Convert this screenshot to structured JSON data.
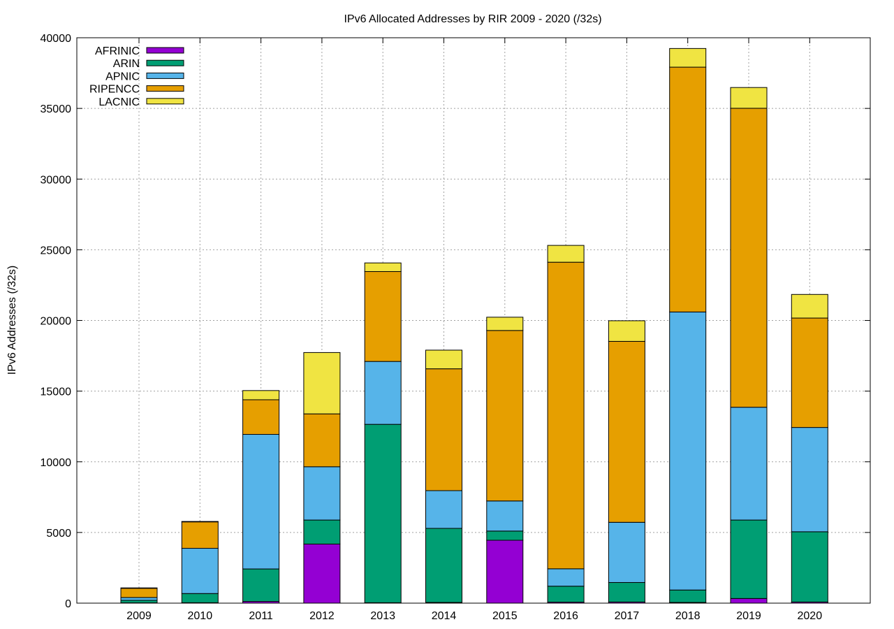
{
  "chart_data": {
    "type": "bar",
    "stacked": true,
    "title": "IPv6 Allocated Addresses by RIR 2009 - 2020 (/32s)",
    "xlabel": "",
    "ylabel": "IPv6 Addresses (/32s)",
    "ylim": [
      0,
      40000
    ],
    "yticks": [
      0,
      5000,
      10000,
      15000,
      20000,
      25000,
      30000,
      35000,
      40000
    ],
    "grid": true,
    "legend_position": "top-left",
    "categories": [
      "2009",
      "2010",
      "2011",
      "2012",
      "2013",
      "2014",
      "2015",
      "2016",
      "2017",
      "2018",
      "2019",
      "2020"
    ],
    "series": [
      {
        "name": "AFRINIC",
        "color": "#9400d3",
        "values": [
          20,
          30,
          120,
          4180,
          30,
          50,
          4450,
          70,
          80,
          50,
          330,
          80
        ]
      },
      {
        "name": "ARIN",
        "color": "#009e73",
        "values": [
          180,
          650,
          2300,
          1700,
          12620,
          5240,
          650,
          1130,
          1380,
          880,
          5550,
          4970
        ]
      },
      {
        "name": "APNIC",
        "color": "#56b4e9",
        "values": [
          200,
          3200,
          9520,
          3770,
          4450,
          2670,
          2130,
          1230,
          4260,
          19670,
          7980,
          7380
        ]
      },
      {
        "name": "RIPENCC",
        "color": "#e69f00",
        "values": [
          650,
          1870,
          2450,
          3740,
          6360,
          8620,
          12060,
          21690,
          12800,
          17320,
          21150,
          7740
        ]
      },
      {
        "name": "LACNIC",
        "color": "#f0e442",
        "values": [
          30,
          30,
          650,
          4340,
          610,
          1320,
          940,
          1190,
          1460,
          1320,
          1470,
          1670
        ]
      }
    ]
  }
}
